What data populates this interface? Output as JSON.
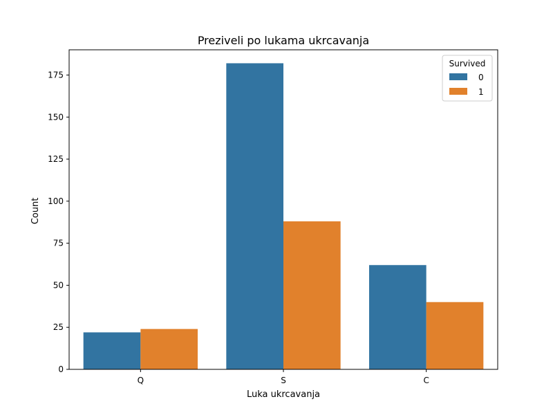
{
  "chart_data": {
    "type": "bar",
    "title": "Preziveli po lukama ukrcavanja",
    "xlabel": "Luka ukrcavanja",
    "ylabel": "Count",
    "categories": [
      "Q",
      "S",
      "C"
    ],
    "series": [
      {
        "name": "0",
        "values": [
          22,
          182,
          62
        ],
        "color": "#3274a1"
      },
      {
        "name": "1",
        "values": [
          24,
          88,
          40
        ],
        "color": "#e1812c"
      }
    ],
    "ylim": [
      0,
      190
    ],
    "yticks": [
      0,
      25,
      50,
      75,
      100,
      125,
      150,
      175
    ],
    "legend": {
      "title": "Survived",
      "placement": "top-right"
    },
    "grid": false
  }
}
